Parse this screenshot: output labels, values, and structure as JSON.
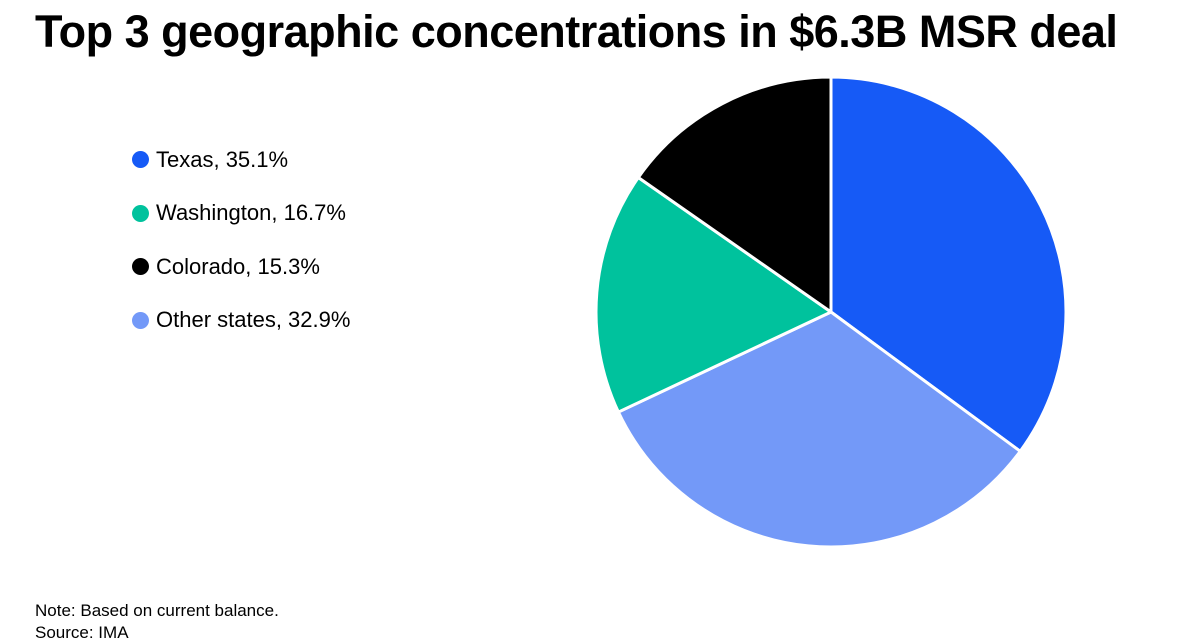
{
  "chart_data": {
    "type": "pie",
    "title": "Top 3 geographic concentrations in $6.3B MSR deal",
    "slices": [
      {
        "label": "Texas",
        "value": 35.1,
        "legend_text": "Texas, 35.1%",
        "color": "#165AF6"
      },
      {
        "label": "Washington",
        "value": 16.7,
        "legend_text": "Washington, 16.7%",
        "color": "#00C29D"
      },
      {
        "label": "Colorado",
        "value": 15.3,
        "legend_text": "Colorado, 15.3%",
        "color": "#000000"
      },
      {
        "label": "Other states",
        "value": 32.9,
        "legend_text": "Other states, 32.9%",
        "color": "#7399F8"
      }
    ],
    "draw_order": [
      "Texas",
      "Other states",
      "Washington",
      "Colorado"
    ],
    "start_direction": "top",
    "rotation": "clockwise",
    "slice_border_color": "#FFFFFF",
    "legend_placement": "left",
    "note": "Note: Based on current balance.",
    "source": "Source: IMA"
  }
}
